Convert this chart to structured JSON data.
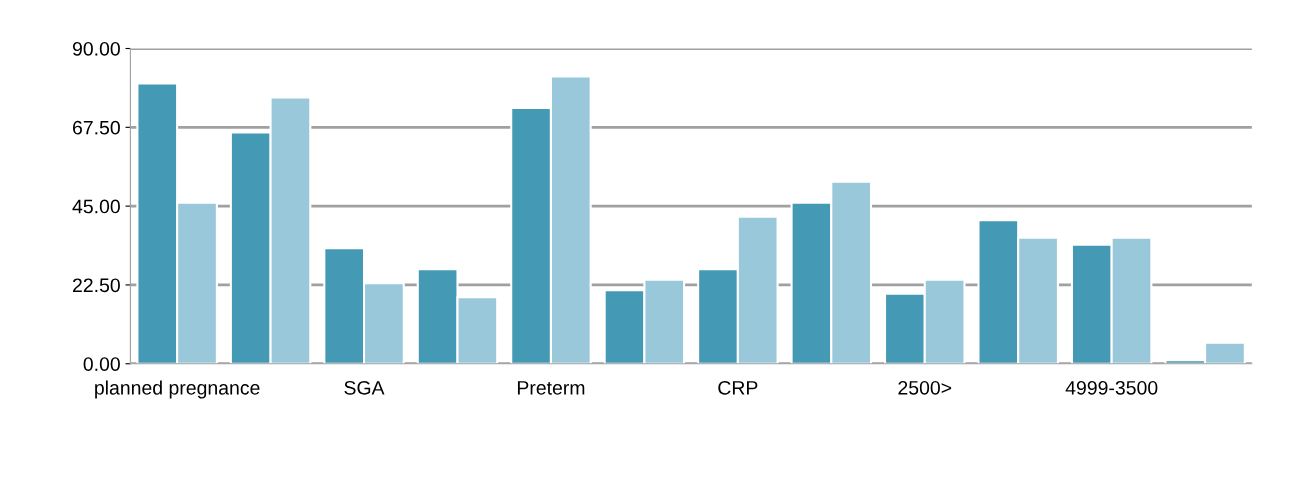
{
  "chart_data": {
    "type": "bar",
    "categories": [
      "planned pregnance",
      null,
      "SGA",
      null,
      "Preterm",
      null,
      "CRP",
      null,
      "2500>",
      null,
      "4999-3500",
      null
    ],
    "series": [
      {
        "color": "#4499b5",
        "values": [
          80,
          66,
          33,
          27,
          73,
          21,
          27,
          46,
          20,
          41,
          34,
          1
        ]
      },
      {
        "color": "#98c8da",
        "values": [
          46,
          76,
          23,
          19,
          82,
          24,
          42,
          52,
          24,
          36,
          36,
          6
        ]
      }
    ],
    "ylim": [
      0,
      90
    ],
    "yticks": [
      {
        "value": 0,
        "label": "0.00"
      },
      {
        "value": 22.5,
        "label": "22.50"
      },
      {
        "value": 45,
        "label": "45.00"
      },
      {
        "value": 67.5,
        "label": "67.50"
      },
      {
        "value": 90,
        "label": "90.00"
      }
    ],
    "grid": "y"
  }
}
